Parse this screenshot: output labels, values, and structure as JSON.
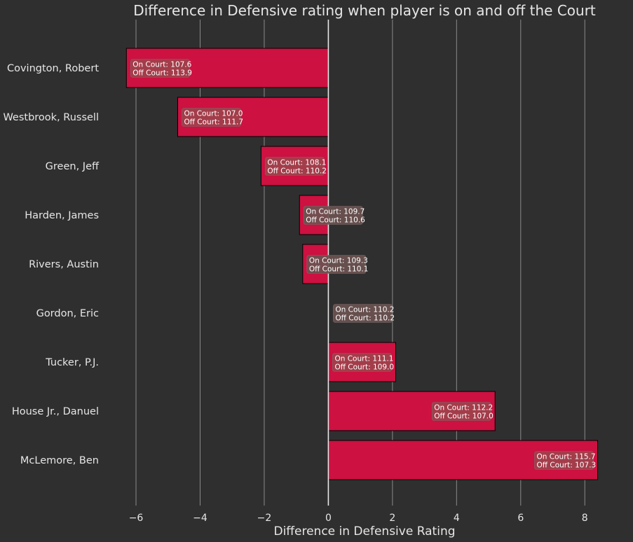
{
  "chart_data": {
    "type": "bar",
    "orientation": "horizontal",
    "title": "Difference in Defensive rating when player is on and off the Court",
    "xlabel": "Difference in Defensive Rating",
    "ylabel": "",
    "xlim": [
      -6.7,
      9.0
    ],
    "xticks": [
      -6,
      -4,
      -2,
      0,
      2,
      4,
      6,
      8
    ],
    "xtick_labels": [
      "−6",
      "−4",
      "−2",
      "0",
      "2",
      "4",
      "6",
      "8"
    ],
    "grid": "vertical",
    "categories": [
      "Covington, Robert",
      "Westbrook, Russell",
      "Green, Jeff",
      "Harden, James",
      "Rivers, Austin",
      "Gordon, Eric",
      "Tucker, P.J.",
      "House Jr., Danuel",
      "McLemore, Ben"
    ],
    "values": [
      -6.3,
      -4.7,
      -2.1,
      -0.9,
      -0.8,
      0.0,
      2.1,
      5.2,
      8.4
    ],
    "annotations": [
      {
        "on_court": "On Court: 107.6",
        "off_court": "Off Court: 113.9"
      },
      {
        "on_court": "On Court: 107.0",
        "off_court": "Off Court: 111.7"
      },
      {
        "on_court": "On Court: 108.1",
        "off_court": "Off Court: 110.2"
      },
      {
        "on_court": "On Court: 109.7",
        "off_court": "Off Court: 110.6"
      },
      {
        "on_court": "On Court: 109.3",
        "off_court": "Off Court: 110.1"
      },
      {
        "on_court": "On Court: 110.2",
        "off_court": "Off Court: 110.2"
      },
      {
        "on_court": "On Court: 111.1",
        "off_court": "Off Court: 109.0"
      },
      {
        "on_court": "On Court: 112.2",
        "off_court": "Off Court: 107.0"
      },
      {
        "on_court": "On Court: 115.7",
        "off_court": "Off Court: 107.3"
      }
    ],
    "colors": {
      "background": "#302f30",
      "bar": "#cd1141",
      "bar_edge": "#000000",
      "grid": "#8a8a8a",
      "zero_line": "#e6e6e6",
      "text": "#e6e6e6",
      "annotation_box": "#a0414b",
      "annotation_box_neutral": "#6b5350"
    }
  }
}
